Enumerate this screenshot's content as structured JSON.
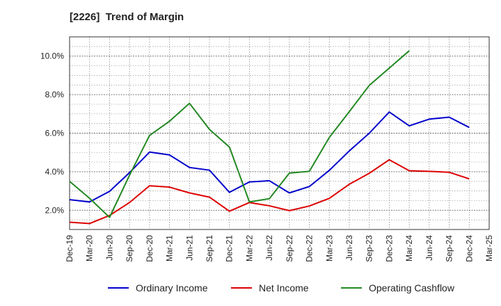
{
  "chart_data": {
    "type": "line",
    "title": "[2226]  Trend of Margin",
    "x": [
      "Dec-19",
      "Mar-20",
      "Jun-20",
      "Sep-20",
      "Dec-20",
      "Mar-21",
      "Jun-21",
      "Sep-21",
      "Dec-21",
      "Mar-22",
      "Jun-22",
      "Sep-22",
      "Dec-22",
      "Mar-23",
      "Jun-23",
      "Sep-23",
      "Dec-23",
      "Mar-24",
      "Jun-24",
      "Sep-24",
      "Dec-24",
      "Mar-25"
    ],
    "ylim": [
      1.0,
      11.0
    ],
    "yticks": [
      2.0,
      4.0,
      6.0,
      8.0,
      10.0
    ],
    "ytick_labels": [
      "2.0%",
      "4.0%",
      "6.0%",
      "8.0%",
      "10.0%"
    ],
    "grid": true,
    "legend_position": "bottom",
    "series": [
      {
        "name": "Ordinary Income",
        "color": "#0000cc",
        "values": [
          2.55,
          2.43,
          2.98,
          3.95,
          5.02,
          4.87,
          4.22,
          4.08,
          2.93,
          3.47,
          3.53,
          2.9,
          3.23,
          4.07,
          5.08,
          6.0,
          7.1,
          6.38,
          6.73,
          6.83,
          6.3,
          null
        ]
      },
      {
        "name": "Net Income",
        "color": "#dd0000",
        "values": [
          1.38,
          1.31,
          1.73,
          2.4,
          3.27,
          3.2,
          2.9,
          2.68,
          1.95,
          2.4,
          2.23,
          1.98,
          2.22,
          2.62,
          3.35,
          3.92,
          4.62,
          4.05,
          4.02,
          3.97,
          3.63,
          null
        ]
      },
      {
        "name": "Operating Cashflow",
        "color": "#228822",
        "values": [
          3.5,
          2.62,
          1.63,
          3.82,
          5.88,
          6.62,
          7.55,
          6.2,
          5.28,
          2.43,
          2.6,
          3.93,
          4.02,
          5.78,
          7.12,
          8.48,
          9.38,
          10.28,
          null,
          null,
          null,
          null
        ]
      }
    ]
  }
}
